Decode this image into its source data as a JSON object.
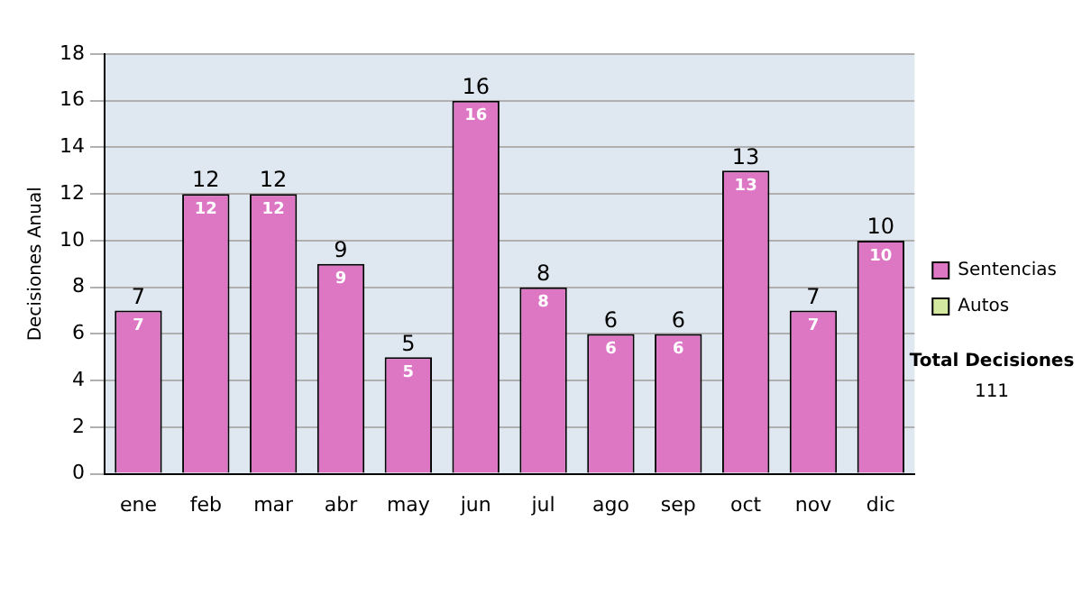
{
  "chart_data": {
    "type": "bar",
    "ylabel": "Decisiones Anual",
    "categories": [
      "ene",
      "feb",
      "mar",
      "abr",
      "may",
      "jun",
      "jul",
      "ago",
      "sep",
      "oct",
      "nov",
      "dic"
    ],
    "series": [
      {
        "name": "Sentencias",
        "color": "#dd77c4",
        "values": [
          7,
          12,
          12,
          9,
          5,
          16,
          8,
          6,
          6,
          13,
          7,
          10
        ]
      },
      {
        "name": "Autos",
        "color": "#d4e8a0",
        "values": [
          null,
          null,
          null,
          null,
          null,
          null,
          null,
          null,
          null,
          null,
          null,
          null
        ]
      }
    ],
    "stacked": true,
    "data_labels": true,
    "totals": [
      "7",
      "12",
      "12",
      "9",
      "5",
      "16",
      "8",
      "6",
      "6",
      "13",
      "7",
      "10"
    ],
    "ylim": [
      0,
      18
    ],
    "yticks": [
      0,
      2,
      4,
      6,
      8,
      10,
      12,
      14,
      16,
      18
    ],
    "grid": "y",
    "legend": "right",
    "annotations": [
      "Total Decisiones",
      "111"
    ]
  }
}
